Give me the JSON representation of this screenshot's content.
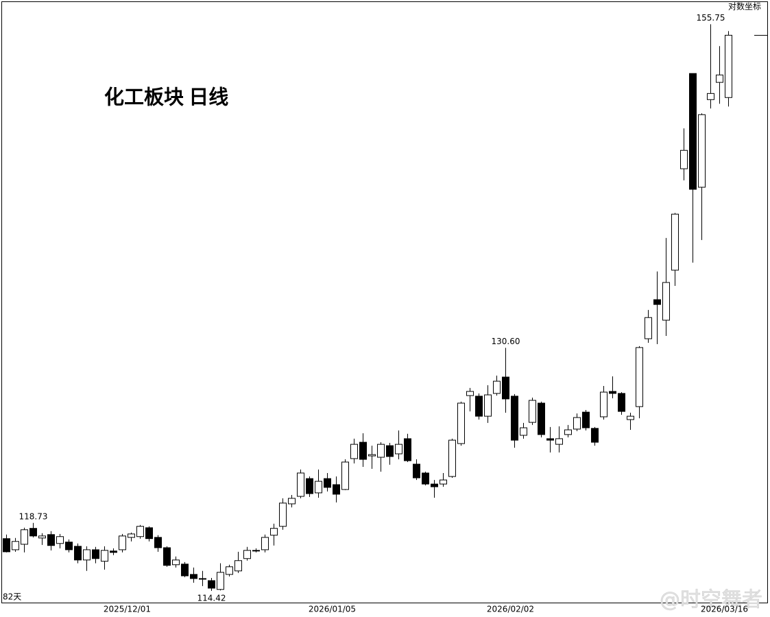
{
  "chart_data": {
    "type": "candlestick",
    "title": "化工板块 日线",
    "scale_label": "对数坐标",
    "period_label": "82天",
    "watermark": "@时空舞者",
    "log_scale": true,
    "up_color": "#ffffff",
    "down_color": "#000000",
    "edge_color": "#000000",
    "ylim": [
      113.65,
      157.7
    ],
    "categories": [
      null,
      null,
      null,
      null,
      null,
      null,
      null,
      null,
      null,
      null,
      null,
      null,
      null,
      null,
      "2025/12/01",
      null,
      null,
      null,
      null,
      null,
      null,
      null,
      null,
      null,
      null,
      null,
      null,
      null,
      null,
      null,
      null,
      null,
      null,
      null,
      null,
      null,
      null,
      "2026/01/05",
      null,
      null,
      null,
      null,
      null,
      null,
      null,
      null,
      null,
      null,
      null,
      null,
      null,
      null,
      null,
      null,
      null,
      null,
      null,
      "2026/02/02",
      null,
      null,
      null,
      null,
      null,
      null,
      null,
      null,
      null,
      null,
      null,
      null,
      null,
      null,
      null,
      null,
      null,
      null,
      null,
      null,
      null,
      null,
      null,
      "2026/03/16"
    ],
    "open": [
      117.72,
      117.01,
      117.36,
      118.38,
      117.76,
      117.98,
      117.41,
      117.5,
      117.23,
      116.36,
      117.01,
      116.28,
      116.93,
      117.01,
      117.8,
      117.85,
      118.42,
      117.8,
      117.14,
      116.06,
      116.1,
      115.45,
      115.19,
      115.06,
      114.51,
      115.45,
      115.67,
      116.45,
      116.93,
      117.01,
      117.94,
      118.51,
      119.97,
      120.46,
      121.63,
      120.69,
      121.63,
      121.23,
      120.91,
      122.96,
      124.06,
      123.14,
      123.05,
      123.83,
      123.28,
      124.3,
      122.59,
      122.0,
      121.27,
      121.27,
      121.77,
      123.97,
      127.25,
      127.21,
      125.83,
      127.4,
      128.54,
      127.21,
      124.53,
      125.41,
      126.73,
      124.3,
      123.92,
      124.58,
      124.95,
      126.11,
      125.0,
      125.79,
      127.54,
      127.4,
      125.6,
      126.49,
      131.25,
      134.07,
      132.58,
      136.24,
      143.97,
      151.63,
      142.53,
      149.49,
      150.9,
      149.66
    ],
    "high": [
      117.98,
      117.76,
      118.42,
      118.73,
      118.07,
      118.2,
      118.02,
      117.67,
      117.41,
      117.23,
      117.19,
      117.23,
      117.1,
      118.02,
      118.11,
      118.6,
      118.51,
      117.94,
      117.23,
      116.58,
      116.23,
      115.88,
      115.67,
      115.23,
      116.15,
      116.06,
      116.88,
      117.19,
      117.1,
      117.98,
      118.68,
      120.33,
      120.55,
      122.23,
      121.77,
      122.23,
      122.0,
      121.77,
      122.91,
      124.3,
      124.67,
      123.83,
      124.06,
      124.02,
      124.86,
      124.63,
      122.91,
      122.09,
      121.54,
      122.0,
      124.3,
      126.83,
      127.78,
      127.4,
      127.97,
      128.64,
      130.6,
      127.35,
      125.37,
      127.11,
      126.83,
      125.09,
      125.14,
      125.23,
      126.02,
      126.26,
      125.09,
      127.92,
      128.59,
      127.49,
      126.07,
      130.72,
      133.32,
      136.14,
      138.65,
      140.55,
      147.17,
      151.63,
      148.38,
      155.75,
      153.91,
      155.17
    ],
    "low": [
      116.84,
      116.88,
      116.84,
      117.8,
      117.32,
      116.97,
      117.1,
      116.84,
      116.15,
      115.67,
      116.15,
      115.75,
      116.67,
      116.84,
      117.54,
      117.72,
      117.54,
      116.88,
      115.93,
      115.88,
      115.28,
      114.93,
      114.72,
      114.42,
      114.45,
      115.32,
      115.54,
      116.32,
      116.84,
      116.84,
      117.28,
      118.29,
      119.74,
      120.33,
      120.42,
      120.37,
      120.78,
      120.06,
      120.87,
      122.64,
      122.41,
      122.28,
      122.09,
      122.55,
      122.91,
      122.73,
      121.54,
      121.18,
      120.37,
      121.09,
      121.68,
      123.83,
      126.16,
      125.6,
      125.37,
      127.25,
      126.07,
      123.69,
      124.3,
      125.23,
      124.39,
      123.37,
      123.37,
      124.39,
      124.81,
      124.86,
      123.83,
      125.6,
      127.06,
      125.93,
      124.9,
      125.69,
      130.96,
      130.86,
      131.45,
      135.08,
      143.06,
      136.8,
      138.49,
      148.77,
      149.15,
      148.93
    ],
    "close": [
      116.88,
      117.54,
      118.29,
      117.89,
      117.89,
      117.28,
      117.85,
      117.01,
      116.36,
      117.01,
      116.45,
      116.97,
      116.84,
      117.89,
      118.02,
      118.51,
      117.72,
      117.14,
      116.02,
      116.36,
      115.36,
      115.19,
      115.15,
      114.59,
      115.58,
      115.93,
      116.32,
      116.97,
      116.97,
      117.8,
      118.38,
      120.02,
      120.33,
      122.0,
      120.64,
      121.45,
      121.05,
      120.6,
      122.73,
      123.92,
      122.91,
      123.23,
      123.92,
      123.1,
      123.92,
      122.82,
      121.68,
      121.27,
      121.09,
      121.54,
      124.2,
      126.73,
      127.54,
      125.83,
      127.3,
      128.25,
      127.02,
      124.2,
      125.04,
      126.92,
      124.58,
      124.2,
      124.3,
      124.9,
      125.74,
      125.04,
      124.06,
      127.49,
      127.4,
      126.16,
      125.83,
      130.62,
      132.77,
      133.72,
      135.33,
      140.46,
      145.42,
      142.37,
      148.27,
      149.99,
      151.51,
      154.82
    ],
    "high_labels": [
      null,
      null,
      null,
      "118.73",
      null,
      null,
      null,
      null,
      null,
      null,
      null,
      null,
      null,
      null,
      null,
      null,
      null,
      null,
      null,
      null,
      null,
      null,
      null,
      null,
      null,
      null,
      null,
      null,
      null,
      null,
      null,
      null,
      null,
      null,
      null,
      null,
      null,
      null,
      null,
      null,
      null,
      null,
      null,
      null,
      null,
      null,
      null,
      null,
      null,
      null,
      null,
      null,
      null,
      null,
      null,
      null,
      "130.60",
      null,
      null,
      null,
      null,
      null,
      null,
      null,
      null,
      null,
      null,
      null,
      null,
      null,
      null,
      null,
      null,
      null,
      null,
      null,
      null,
      null,
      null,
      "155.75",
      null,
      null
    ],
    "low_labels": [
      null,
      null,
      null,
      null,
      null,
      null,
      null,
      null,
      null,
      null,
      null,
      null,
      null,
      null,
      null,
      null,
      null,
      null,
      null,
      null,
      null,
      null,
      null,
      "114.42",
      null,
      null,
      null,
      null,
      null,
      null,
      null,
      null,
      null,
      null,
      null,
      null,
      null,
      null,
      null,
      null,
      null,
      null,
      null,
      null,
      null,
      null,
      null,
      null,
      null,
      null,
      null,
      null,
      null,
      null,
      null,
      null,
      null,
      null,
      null,
      null,
      null,
      null,
      null,
      null,
      null,
      null,
      null,
      null,
      null,
      null,
      null,
      null,
      null,
      null,
      null,
      null,
      null,
      null,
      null,
      null,
      null,
      null
    ]
  }
}
